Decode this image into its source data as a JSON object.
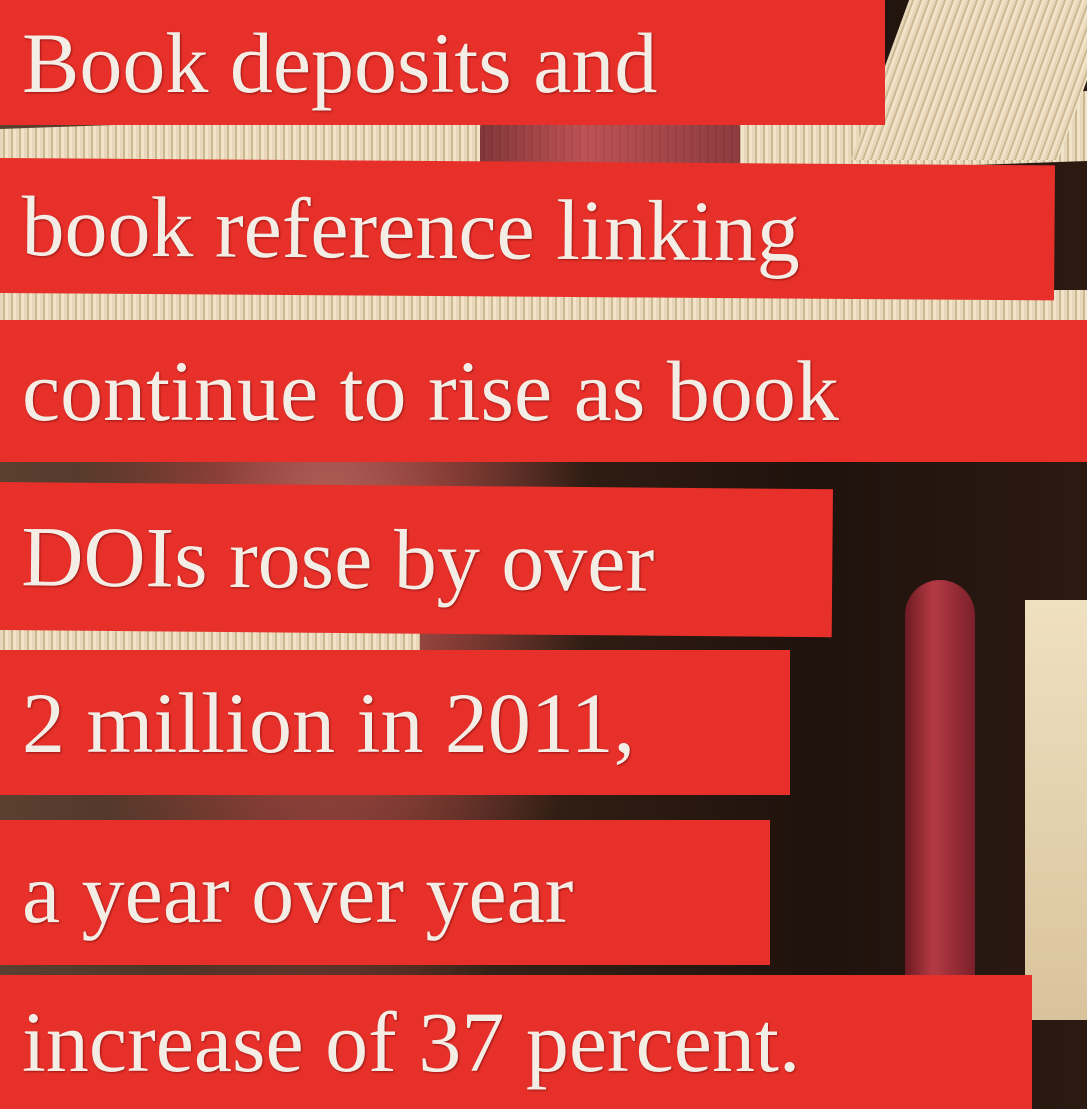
{
  "lines": [
    "Book deposits and",
    "book reference linking",
    "continue to rise as book",
    "DOIs rose by over",
    "2 million in 2011,",
    "a year over year",
    "increase of 37 percent."
  ]
}
